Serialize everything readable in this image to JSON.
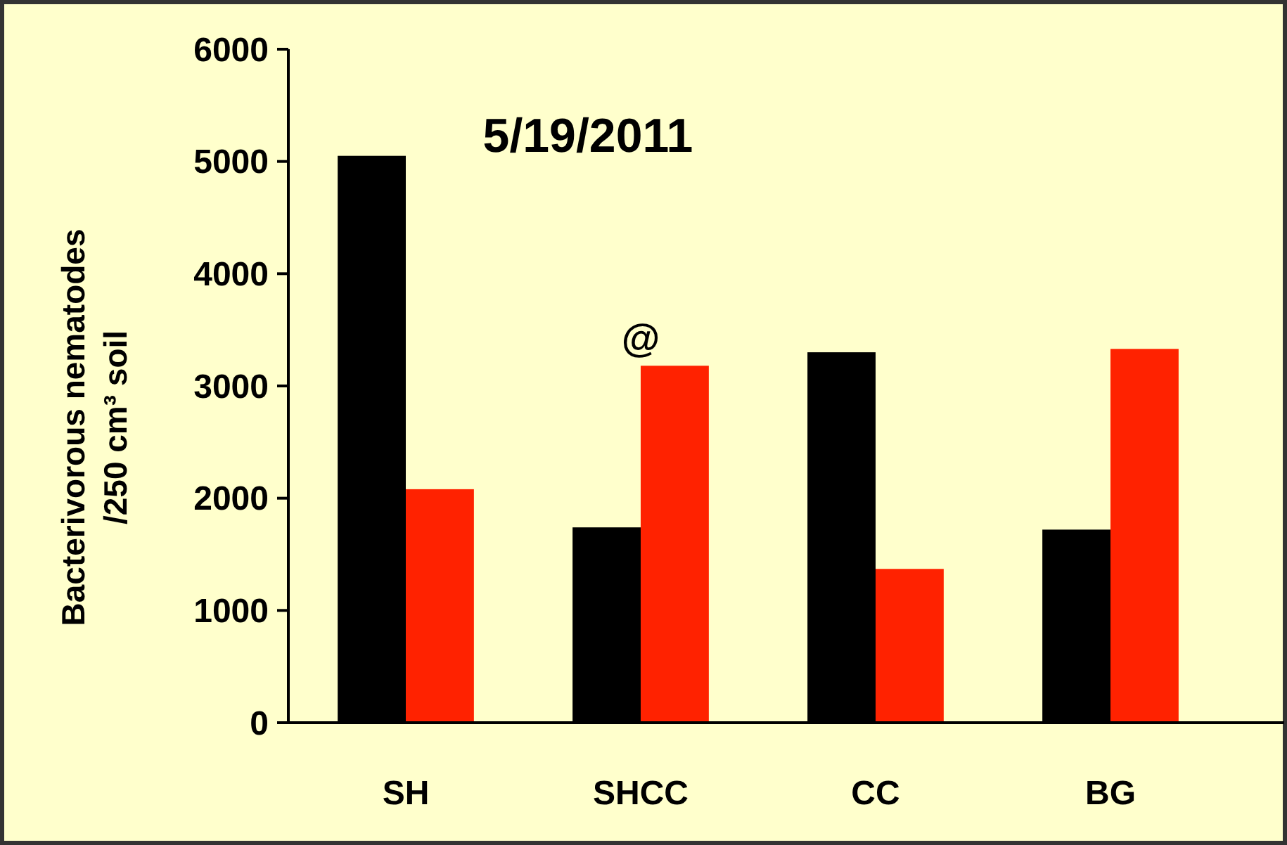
{
  "chart_data": {
    "type": "bar",
    "title": "5/19/2011",
    "ylabel": "Bacterivorous nematodes\n/250 cm³ soil",
    "categories": [
      "SH",
      "SHCC",
      "CC",
      "BG"
    ],
    "series": [
      {
        "color": "#000000",
        "values": [
          5050,
          1740,
          3300,
          1720
        ]
      },
      {
        "color": "#ff2200",
        "values": [
          2080,
          3180,
          1370,
          3330
        ]
      }
    ],
    "annotations": [
      {
        "text": "@",
        "x": "SHCC",
        "y": 3180
      }
    ],
    "ylim": [
      0,
      6000
    ],
    "yticks": [
      0,
      1000,
      2000,
      3000,
      4000,
      5000,
      6000
    ],
    "grid": false
  }
}
